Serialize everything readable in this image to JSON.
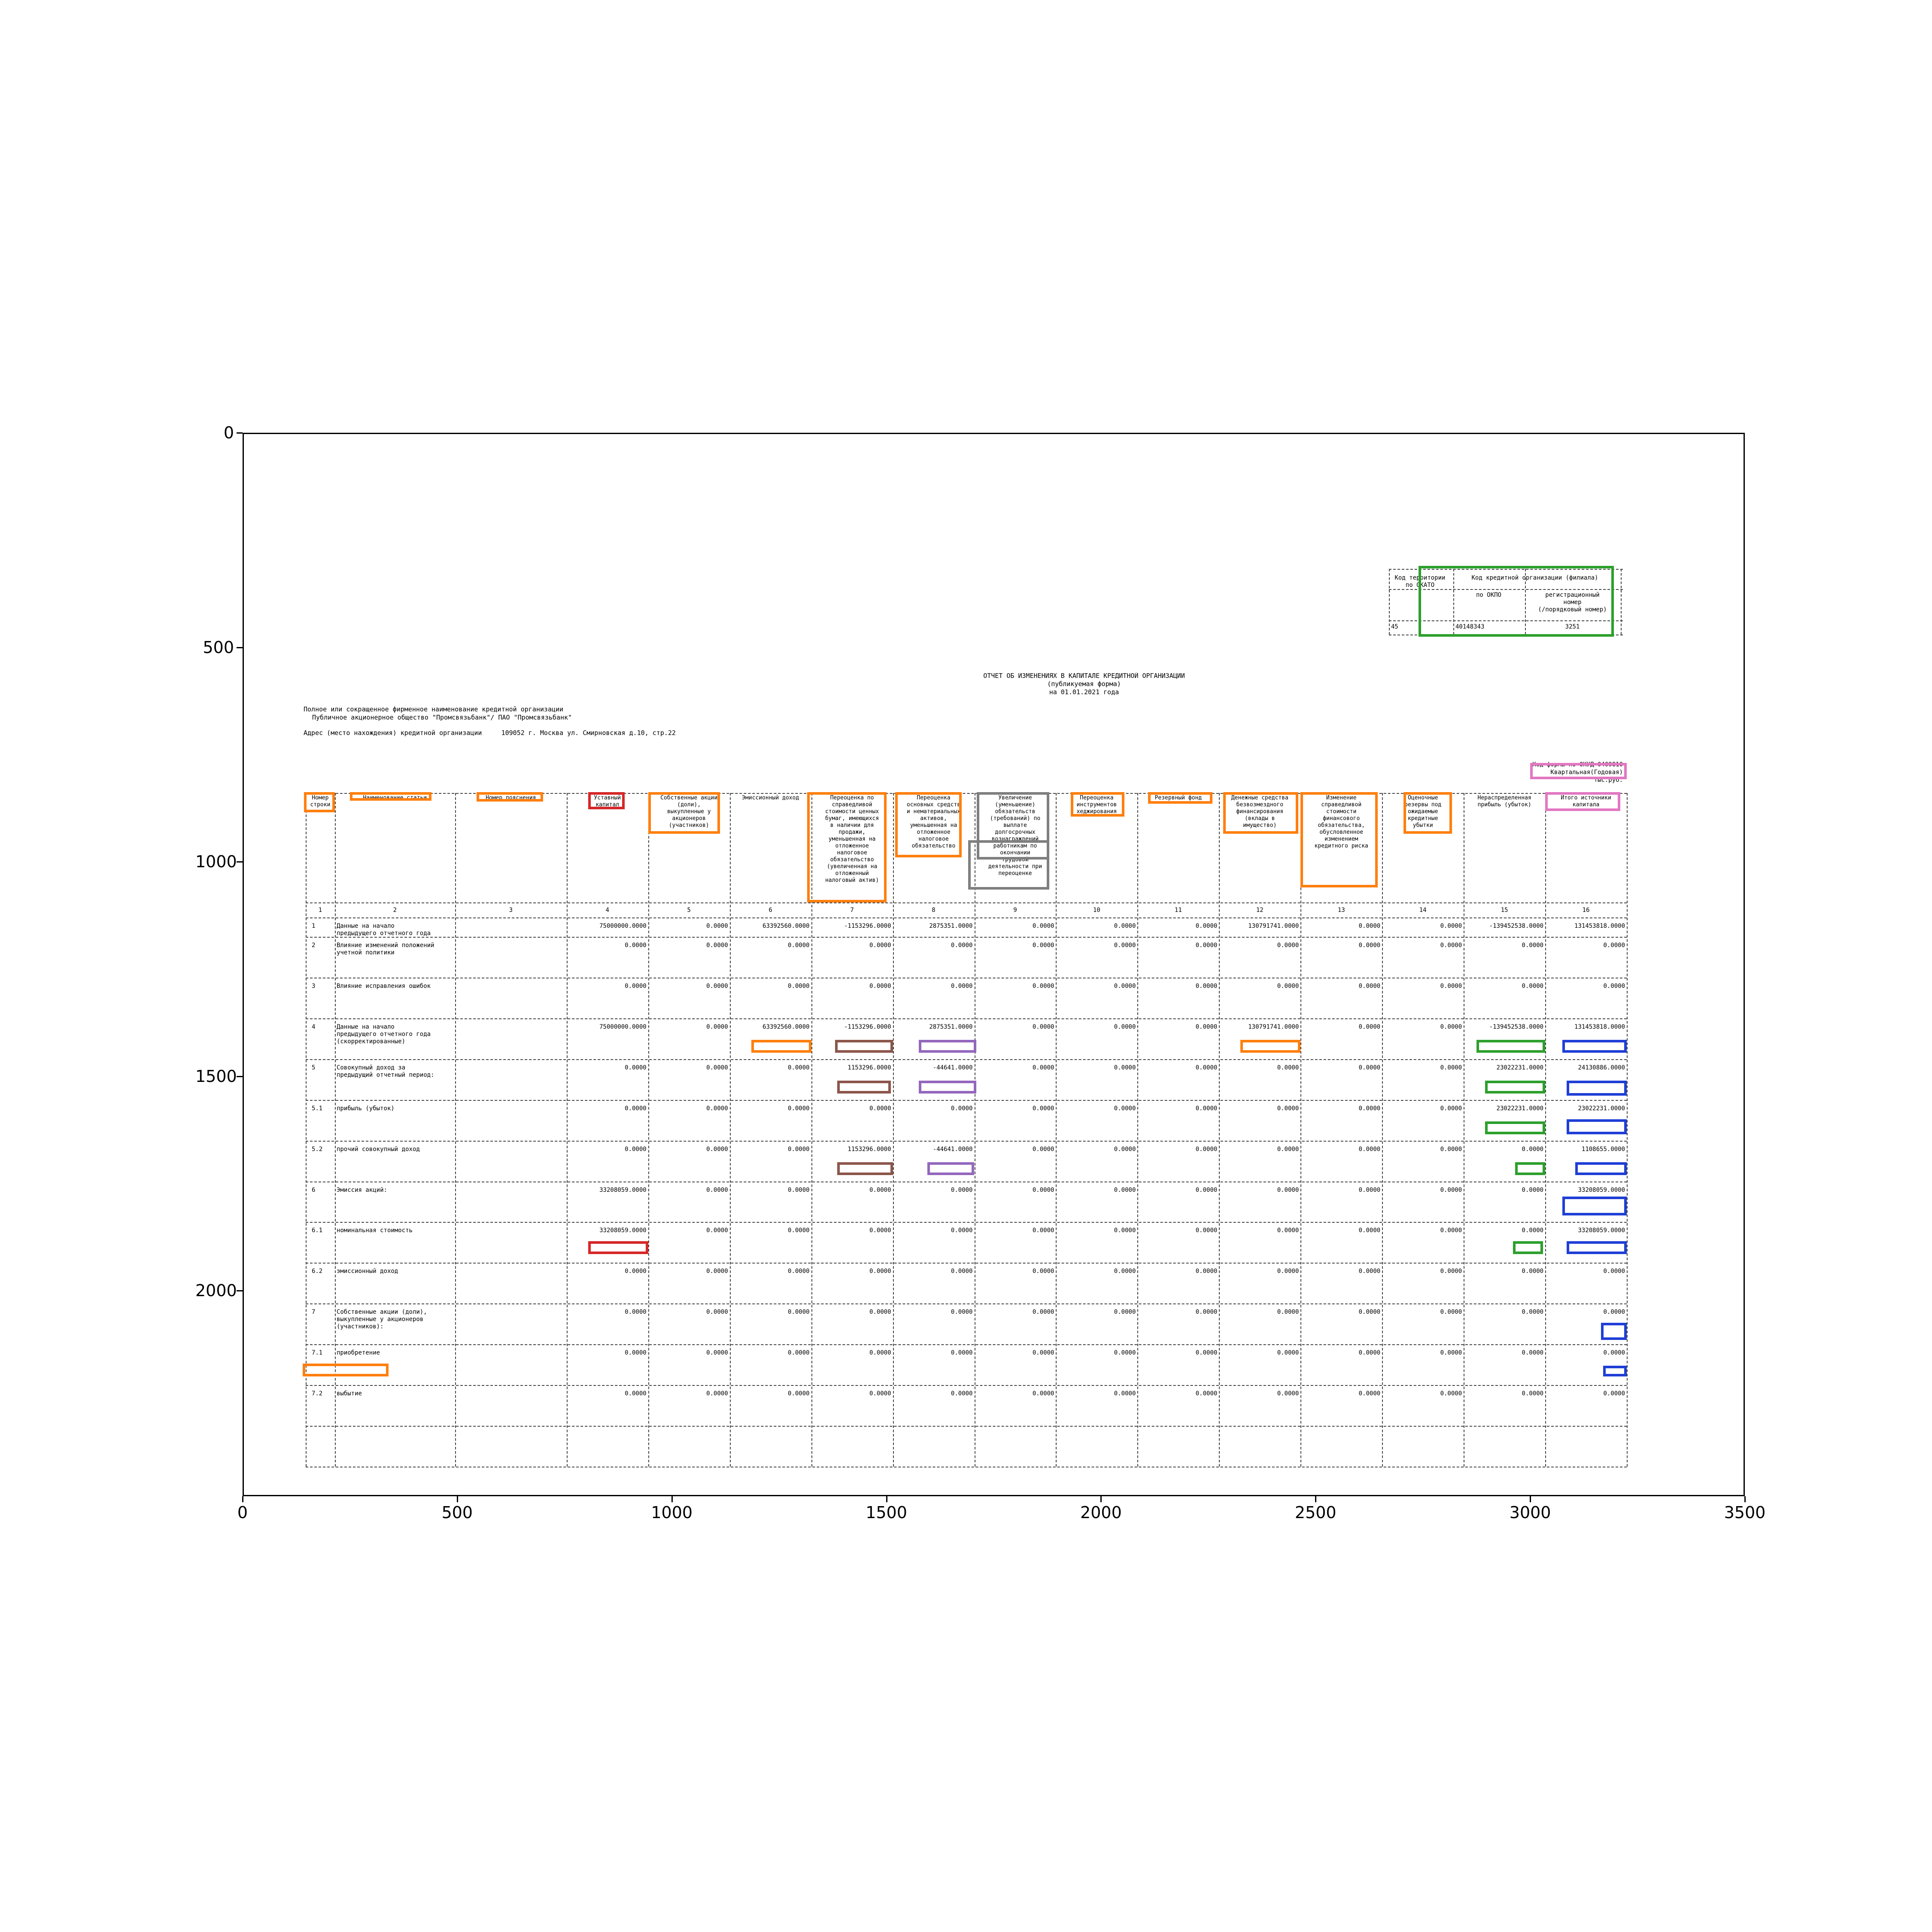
{
  "axes": {
    "y_ticks": [
      "0",
      "500",
      "1000",
      "1500",
      "2000"
    ],
    "x_ticks": [
      "0",
      "500",
      "1000",
      "1500",
      "2000",
      "2500",
      "3000",
      "3500"
    ]
  },
  "codes_box": {
    "h_territory": "Код территории\nпо ОКАТО",
    "h_org": "Код кредитной организации (филиала)",
    "h_okpo": "по ОКПО",
    "h_reg": "регистрационный\nномер\n(/порядковый номер)",
    "v_territory": "45",
    "v_okpo": "40148343",
    "v_reg": "3251"
  },
  "title": {
    "line1": "ОТЧЕТ ОБ ИЗМЕНЕНИЯХ В КАПИТАЛЕ КРЕДИТНОЙ ОРГАНИЗАЦИИ",
    "line2": "(публикуемая форма)",
    "line3": "на  01.01.2021 года"
  },
  "org": {
    "label": "Полное или сокращенное фирменное наименование кредитной организации",
    "name": "Публичное акционерное общество \"Промсвязьбанк\"/ ПАО \"Промсвязьбанк\"",
    "address": "Адрес (место нахождения) кредитной организации     109052 г. Москва ул. Смирновская д.10, стр.22"
  },
  "form_code": {
    "line1": "Код формы по ОКУД 0409810",
    "line2": "Квартальная(Годовая)",
    "line3": "тыс.руб."
  },
  "table": {
    "headers": [
      "Номер\nстроки",
      "Наименование статьи",
      "Номер пояснения",
      "Уставный\nкапитал",
      "Собственные акции\n(доли),\nвыкупленные у\nакционеров\n(участников)",
      "Эмиссионный доход",
      "Переоценка по\nсправедливой\nстоимости ценных\nбумаг, имеющихся\nв наличии для\nпродажи,\nуменьшенная на\nотложенное\nналоговое\nобязательство\n(увеличенная на\nотложенный\nналоговый актив)",
      "Переоценка\nосновных средств\nи нематериальных\nактивов,\nуменьшенная на\nотложенное\nналоговое\nобязательство",
      "Увеличение\n(уменьшение)\nобязательств\n(требований) по\nвыплате\nдолгосрочных\nвознаграждений\nработникам по\nокончании\nтрудовой\nдеятельности при\nпереоценке",
      "Переоценка\nинструментов\nхеджирования",
      "Резервный фонд",
      "Денежные средства\nбезвозмездного\nфинансирования\n(вклады в\nимущество)",
      "Изменение\nсправедливой\nстоимости\nфинансового\nобязательства,\nобусловленное\nизменением\nкредитного риска",
      "Оценочные\nрезервы под\nожидаемые\nкредитные\nубытки",
      "Нераспределенная\nприбыль (убыток)",
      "Итого источники\nкапитала"
    ],
    "col_numbers": [
      "1",
      "2",
      "3",
      "4",
      "5",
      "6",
      "7",
      "8",
      "9",
      "10",
      "11",
      "12",
      "13",
      "14",
      "15",
      "16"
    ],
    "rows": [
      {
        "num": "1",
        "name": "Данные на начало\nпредыдущего отчетного года",
        "note": "",
        "vals": [
          "75000000.0000",
          "0.0000",
          "63392560.0000",
          "-1153296.0000",
          "2875351.0000",
          "0.0000",
          "0.0000",
          "0.0000",
          "130791741.0000",
          "0.0000",
          "0.0000",
          "-139452538.0000",
          "131453818.0000"
        ]
      },
      {
        "num": "2",
        "name": "Влияние изменений положений\nучетной политики",
        "note": "",
        "vals": [
          "0.0000",
          "0.0000",
          "0.0000",
          "0.0000",
          "0.0000",
          "0.0000",
          "0.0000",
          "0.0000",
          "0.0000",
          "0.0000",
          "0.0000",
          "0.0000",
          "0.0000"
        ]
      },
      {
        "num": "3",
        "name": "Влияние исправления ошибок",
        "note": "",
        "vals": [
          "0.0000",
          "0.0000",
          "0.0000",
          "0.0000",
          "0.0000",
          "0.0000",
          "0.0000",
          "0.0000",
          "0.0000",
          "0.0000",
          "0.0000",
          "0.0000",
          "0.0000"
        ]
      },
      {
        "num": "4",
        "name": "Данные на начало\nпредыдущего отчетного года\n(скорректированные)",
        "note": "",
        "vals": [
          "75000000.0000",
          "0.0000",
          "63392560.0000",
          "-1153296.0000",
          "2875351.0000",
          "0.0000",
          "0.0000",
          "0.0000",
          "130791741.0000",
          "0.0000",
          "0.0000",
          "-139452538.0000",
          "131453818.0000"
        ]
      },
      {
        "num": "5",
        "name": "Совокупный доход за\nпредыдущий отчетный период:",
        "note": "",
        "vals": [
          "0.0000",
          "0.0000",
          "0.0000",
          "1153296.0000",
          "-44641.0000",
          "0.0000",
          "0.0000",
          "0.0000",
          "0.0000",
          "0.0000",
          "0.0000",
          "23022231.0000",
          "24130886.0000"
        ]
      },
      {
        "num": "5.1",
        "name": "прибыль (убыток)",
        "note": "",
        "vals": [
          "0.0000",
          "0.0000",
          "0.0000",
          "0.0000",
          "0.0000",
          "0.0000",
          "0.0000",
          "0.0000",
          "0.0000",
          "0.0000",
          "0.0000",
          "23022231.0000",
          "23022231.0000"
        ]
      },
      {
        "num": "5.2",
        "name": "прочий совокупный доход",
        "note": "",
        "vals": [
          "0.0000",
          "0.0000",
          "0.0000",
          "1153296.0000",
          "-44641.0000",
          "0.0000",
          "0.0000",
          "0.0000",
          "0.0000",
          "0.0000",
          "0.0000",
          "0.0000",
          "1108655.0000"
        ]
      },
      {
        "num": "6",
        "name": "Эмиссия акций:",
        "note": "",
        "vals": [
          "33208059.0000",
          "0.0000",
          "0.0000",
          "0.0000",
          "0.0000",
          "0.0000",
          "0.0000",
          "0.0000",
          "0.0000",
          "0.0000",
          "0.0000",
          "0.0000",
          "33208059.0000"
        ]
      },
      {
        "num": "6.1",
        "name": "номинальная стоимость",
        "note": "",
        "vals": [
          "33208059.0000",
          "0.0000",
          "0.0000",
          "0.0000",
          "0.0000",
          "0.0000",
          "0.0000",
          "0.0000",
          "0.0000",
          "0.0000",
          "0.0000",
          "0.0000",
          "33208059.0000"
        ]
      },
      {
        "num": "6.2",
        "name": "эмиссионный доход",
        "note": "",
        "vals": [
          "0.0000",
          "0.0000",
          "0.0000",
          "0.0000",
          "0.0000",
          "0.0000",
          "0.0000",
          "0.0000",
          "0.0000",
          "0.0000",
          "0.0000",
          "0.0000",
          "0.0000"
        ]
      },
      {
        "num": "7",
        "name": "Собственные акции (доли),\nвыкупленные у акционеров\n(участников):",
        "note": "",
        "vals": [
          "0.0000",
          "0.0000",
          "0.0000",
          "0.0000",
          "0.0000",
          "0.0000",
          "0.0000",
          "0.0000",
          "0.0000",
          "0.0000",
          "0.0000",
          "0.0000",
          "0.0000"
        ]
      },
      {
        "num": "7.1",
        "name": "приобретение",
        "note": "",
        "vals": [
          "0.0000",
          "0.0000",
          "0.0000",
          "0.0000",
          "0.0000",
          "0.0000",
          "0.0000",
          "0.0000",
          "0.0000",
          "0.0000",
          "0.0000",
          "0.0000",
          "0.0000"
        ]
      },
      {
        "num": "7.2",
        "name": "выбытие",
        "note": "",
        "vals": [
          "0.0000",
          "0.0000",
          "0.0000",
          "0.0000",
          "0.0000",
          "0.0000",
          "0.0000",
          "0.0000",
          "0.0000",
          "0.0000",
          "0.0000",
          "0.0000",
          "0.0000"
        ]
      }
    ]
  },
  "annotation_colors": {
    "orange": "#ff7f0e",
    "green": "#2ca02c",
    "red": "#d62728",
    "pink": "#e377c2",
    "gray": "#7f7f7f",
    "brown": "#8c564b",
    "purple": "#9467bd",
    "blue": "#1f3fd6"
  }
}
